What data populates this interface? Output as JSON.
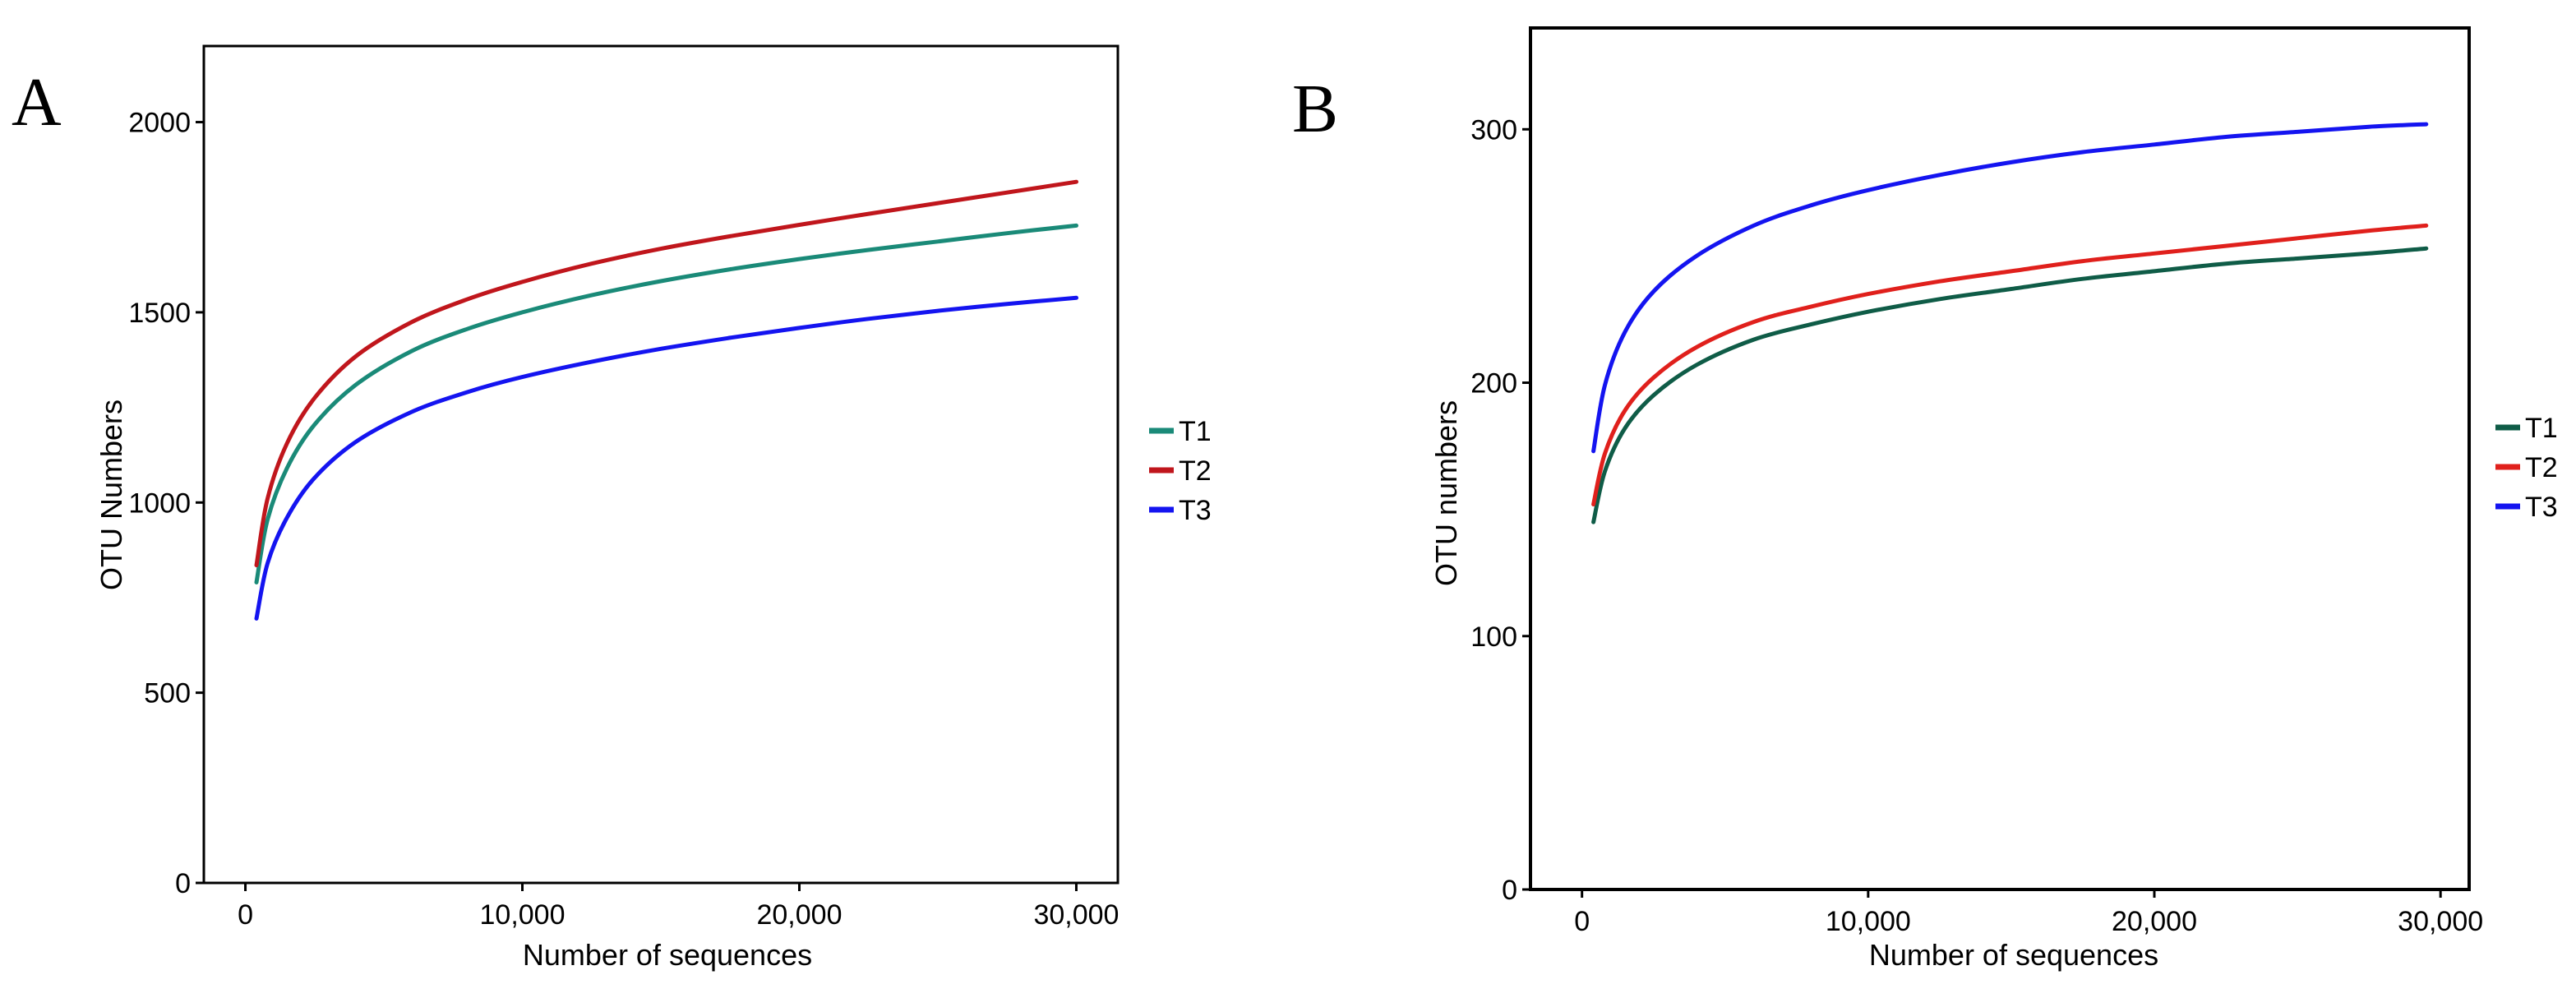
{
  "chart_data": [
    {
      "panel": "A",
      "type": "line",
      "xlabel": "Number of sequences",
      "ylabel": "OTU Numbers",
      "xlim": [
        -1500,
        31500
      ],
      "ylim": [
        0,
        2200
      ],
      "xticks": [
        {
          "value": 0,
          "label": "0"
        },
        {
          "value": 10000,
          "label": "10,000"
        },
        {
          "value": 20000,
          "label": "20,000"
        },
        {
          "value": 30000,
          "label": "30,000"
        }
      ],
      "yticks": [
        {
          "value": 0,
          "label": "0"
        },
        {
          "value": 500,
          "label": "500"
        },
        {
          "value": 1000,
          "label": "1000"
        },
        {
          "value": 1500,
          "label": "1500"
        },
        {
          "value": 2000,
          "label": "2000"
        }
      ],
      "x": [
        400,
        800,
        1500,
        2500,
        4000,
        6000,
        8000,
        10000,
        12500,
        15000,
        17500,
        20000,
        22500,
        25000,
        27500,
        30000
      ],
      "series": [
        {
          "name": "T1",
          "color": "#1a8a78",
          "values": [
            790,
            955,
            1090,
            1205,
            1310,
            1398,
            1456,
            1500,
            1545,
            1582,
            1613,
            1640,
            1664,
            1686,
            1708,
            1728
          ]
        },
        {
          "name": "T2",
          "color": "#c0161c",
          "values": [
            835,
            1010,
            1155,
            1275,
            1385,
            1474,
            1534,
            1580,
            1628,
            1667,
            1700,
            1730,
            1759,
            1787,
            1815,
            1843
          ]
        },
        {
          "name": "T3",
          "color": "#1414f0",
          "values": [
            695,
            840,
            960,
            1065,
            1160,
            1238,
            1290,
            1330,
            1370,
            1404,
            1433,
            1459,
            1483,
            1504,
            1522,
            1538
          ]
        }
      ]
    },
    {
      "panel": "B",
      "type": "line",
      "xlabel": "Number of sequences",
      "ylabel": "OTU numbers",
      "xlim": [
        -1800,
        31000
      ],
      "ylim": [
        0,
        340
      ],
      "xticks": [
        {
          "value": 0,
          "label": "0"
        },
        {
          "value": 10000,
          "label": "10,000"
        },
        {
          "value": 20000,
          "label": "20,000"
        },
        {
          "value": 30000,
          "label": "30,000"
        }
      ],
      "yticks": [
        {
          "value": 0,
          "label": "0"
        },
        {
          "value": 100,
          "label": "100"
        },
        {
          "value": 200,
          "label": "200"
        },
        {
          "value": 300,
          "label": "300"
        }
      ],
      "x": [
        400,
        800,
        1500,
        2500,
        4000,
        6000,
        8000,
        10000,
        12500,
        15000,
        17500,
        20000,
        22500,
        25000,
        27500,
        29500
      ],
      "series": [
        {
          "name": "T1",
          "color": "#0f5c47",
          "values": [
            145,
            165,
            182,
            195,
            207,
            217,
            223,
            228,
            233,
            237,
            241,
            244,
            247,
            249,
            251,
            253
          ]
        },
        {
          "name": "T2",
          "color": "#e0201c",
          "values": [
            152,
            172,
            189,
            202,
            214,
            224,
            230,
            235,
            240,
            244,
            248,
            251,
            254,
            257,
            260,
            262
          ]
        },
        {
          "name": "T3",
          "color": "#1414f0",
          "values": [
            173,
            199,
            220,
            236,
            250,
            262,
            270,
            276,
            282,
            287,
            291,
            294,
            297,
            299,
            301,
            302
          ]
        }
      ]
    }
  ]
}
